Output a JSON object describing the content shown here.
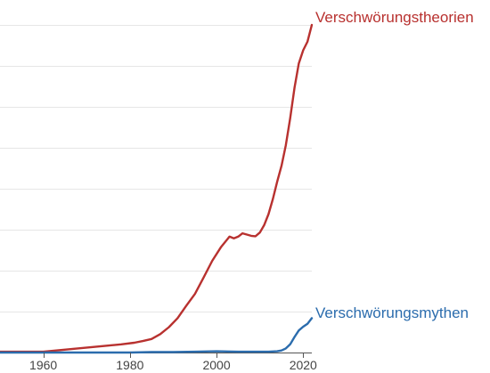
{
  "chart_data": {
    "type": "line",
    "xlim": [
      1950,
      2022
    ],
    "ylim": [
      0,
      8
    ],
    "grid": true,
    "x_ticks": [
      1960,
      1980,
      2000,
      2020
    ],
    "y_gridlines": [
      1,
      2,
      3,
      4,
      5,
      6,
      7,
      8
    ],
    "series": [
      {
        "name": "Verschwörungstheorien",
        "color": "#b8312f",
        "x": [
          1950,
          1955,
          1960,
          1963,
          1966,
          1969,
          1972,
          1975,
          1978,
          1981,
          1983,
          1985,
          1987,
          1989,
          1991,
          1993,
          1995,
          1997,
          1999,
          2001,
          2003,
          2004,
          2005,
          2006,
          2007,
          2008,
          2009,
          2010,
          2011,
          2012,
          2013,
          2014,
          2015,
          2016,
          2017,
          2018,
          2019,
          2020,
          2021,
          2022
        ],
        "y": [
          0.02,
          0.02,
          0.02,
          0.05,
          0.08,
          0.11,
          0.14,
          0.17,
          0.2,
          0.24,
          0.28,
          0.33,
          0.45,
          0.62,
          0.84,
          1.14,
          1.43,
          1.83,
          2.24,
          2.57,
          2.83,
          2.79,
          2.83,
          2.91,
          2.88,
          2.85,
          2.84,
          2.93,
          3.11,
          3.38,
          3.75,
          4.17,
          4.56,
          5.06,
          5.72,
          6.47,
          7.06,
          7.38,
          7.59,
          8.0
        ]
      },
      {
        "name": "Verschwörungsmythen",
        "color": "#2b6cad",
        "x": [
          1950,
          1955,
          1960,
          1965,
          1970,
          1975,
          1980,
          1985,
          1990,
          1995,
          2000,
          2005,
          2010,
          2012,
          2014,
          2015,
          2016,
          2017,
          2018,
          2019,
          2020,
          2021,
          2022
        ],
        "y": [
          0.0,
          0.0,
          0.0,
          0.0,
          0.0,
          0.0,
          0.0,
          0.01,
          0.01,
          0.02,
          0.03,
          0.02,
          0.02,
          0.02,
          0.03,
          0.05,
          0.1,
          0.2,
          0.38,
          0.54,
          0.63,
          0.7,
          0.84
        ]
      }
    ]
  }
}
